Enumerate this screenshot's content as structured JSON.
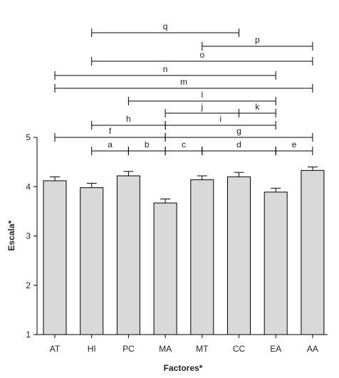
{
  "chart_data": {
    "type": "bar",
    "xlabel": "Factores*",
    "ylabel": "Escala*",
    "ylim": [
      1,
      5
    ],
    "yticks": [
      "1",
      "2",
      "3",
      "4",
      "5"
    ],
    "grid": false,
    "categories": [
      "AT",
      "HI",
      "PC",
      "MA",
      "MT",
      "CC",
      "EA",
      "AA"
    ],
    "values": [
      4.12,
      3.98,
      4.22,
      3.67,
      4.14,
      4.2,
      3.89,
      4.33
    ],
    "errors": [
      0.08,
      0.09,
      0.09,
      0.08,
      0.08,
      0.09,
      0.08,
      0.07
    ],
    "comparisons": [
      {
        "label": "q",
        "from": "HI",
        "to": "CC",
        "mid_at": null
      },
      {
        "label": "p",
        "from": "MT",
        "to": "AA",
        "mid_at": null
      },
      {
        "label": "o",
        "from": "HI",
        "to": "AA",
        "mid_at": null
      },
      {
        "label": "n",
        "from": "AT",
        "to": "EA",
        "mid_at": null
      },
      {
        "label": "m",
        "from": "AT",
        "to": "AA",
        "mid_at": null
      },
      {
        "label": "l",
        "from": "PC",
        "to": "EA",
        "mid_at": null
      },
      {
        "label": "j",
        "from": "MA",
        "to": "CC",
        "mid_at": null
      },
      {
        "label": "k",
        "from": "CC",
        "to": "EA",
        "mid_at": null
      },
      {
        "label": "h",
        "from": "HI",
        "to": "MA",
        "mid_at": null
      },
      {
        "label": "i",
        "from": "MA",
        "to": "EA",
        "mid_at": null
      },
      {
        "label": "f",
        "from": "AT",
        "to": "MA",
        "mid_at": null
      },
      {
        "label": "g",
        "from": "MA",
        "to": "AA",
        "mid_at": null
      },
      {
        "label": "a",
        "from": "HI",
        "to": "PC",
        "mid_at": null
      },
      {
        "label": "b",
        "from": "PC",
        "to": "MA",
        "mid_at": null
      },
      {
        "label": "c",
        "from": "MA",
        "to": "MT",
        "mid_at": null
      },
      {
        "label": "d",
        "from": "MT",
        "to": "EA",
        "mid_at": null
      },
      {
        "label": "e",
        "from": "EA",
        "to": "AA",
        "mid_at": null
      }
    ]
  }
}
